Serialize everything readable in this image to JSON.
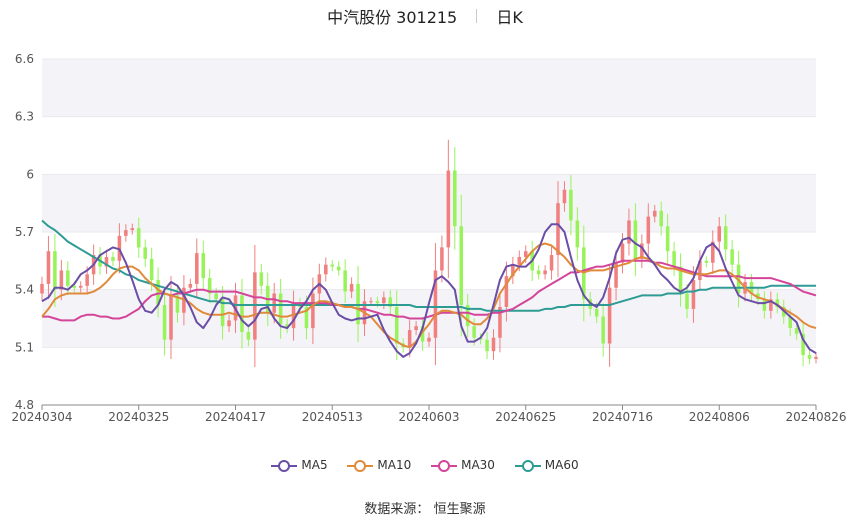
{
  "title": {
    "name": "中汽股份 301215",
    "period": "日K"
  },
  "source": {
    "label": "数据来源：",
    "value": "恒生聚源"
  },
  "colors": {
    "up": "#f08080",
    "down": "#98f35a",
    "MA5": "#6a4ea6",
    "MA10": "#e08a3a",
    "MA30": "#d3449a",
    "MA60": "#2e9b94",
    "grid": "#e8e8ee",
    "band": "#f4f4f8"
  },
  "chart_data": {
    "type": "candlestick",
    "title": "中汽股份 301215",
    "ylim": [
      4.8,
      6.6
    ],
    "yticks": [
      "6.6",
      "6.3",
      "6",
      "5.7",
      "5.4",
      "5.1",
      "4.8"
    ],
    "xticks": [
      {
        "index": 0,
        "label": "20240304"
      },
      {
        "index": 15,
        "label": "20240325"
      },
      {
        "index": 30,
        "label": "20240417"
      },
      {
        "index": 45,
        "label": "20240513"
      },
      {
        "index": 60,
        "label": "20240603"
      },
      {
        "index": 75,
        "label": "20240625"
      },
      {
        "index": 90,
        "label": "20240716"
      },
      {
        "index": 105,
        "label": "20240806"
      },
      {
        "index": 120,
        "label": "20240826"
      }
    ],
    "grid": true,
    "legend_position": "bottom",
    "legend": [
      "MA5",
      "MA10",
      "MA30",
      "MA60"
    ],
    "series": {
      "close": [
        5.43,
        5.6,
        5.4,
        5.5,
        5.42,
        5.41,
        5.42,
        5.48,
        5.58,
        5.52,
        5.57,
        5.55,
        5.68,
        5.71,
        5.72,
        5.62,
        5.56,
        5.45,
        5.32,
        5.14,
        5.37,
        5.28,
        5.41,
        5.43,
        5.59,
        5.46,
        5.38,
        5.35,
        5.21,
        5.24,
        5.37,
        5.18,
        5.14,
        5.49,
        5.42,
        5.28,
        5.38,
        5.22,
        5.2,
        5.33,
        5.31,
        5.2,
        5.38,
        5.48,
        5.53,
        5.52,
        5.5,
        5.39,
        5.43,
        5.22,
        5.34,
        5.34,
        5.33,
        5.36,
        5.31,
        5.12,
        5.1,
        5.19,
        5.21,
        5.13,
        5.15,
        5.5,
        5.62,
        6.02,
        5.73,
        5.32,
        5.21,
        5.15,
        5.14,
        5.08,
        5.15,
        5.31,
        5.47,
        5.53,
        5.57,
        5.6,
        5.5,
        5.48,
        5.5,
        5.58,
        5.85,
        5.92,
        5.76,
        5.62,
        5.35,
        5.3,
        5.26,
        5.12,
        5.41,
        5.54,
        5.64,
        5.76,
        5.56,
        5.64,
        5.78,
        5.81,
        5.73,
        5.6,
        5.52,
        5.38,
        5.3,
        5.45,
        5.55,
        5.54,
        5.65,
        5.73,
        5.61,
        5.53,
        5.38,
        5.44,
        5.38,
        5.35,
        5.29,
        5.35,
        5.31,
        5.26,
        5.2,
        5.17,
        5.06,
        5.04,
        5.05
      ],
      "MA5": [
        5.34,
        5.36,
        5.41,
        5.41,
        5.4,
        5.43,
        5.48,
        5.5,
        5.53,
        5.58,
        5.6,
        5.62,
        5.61,
        5.54,
        5.45,
        5.35,
        5.29,
        5.28,
        5.32,
        5.4,
        5.44,
        5.42,
        5.37,
        5.31,
        5.23,
        5.2,
        5.25,
        5.32,
        5.36,
        5.35,
        5.3,
        5.24,
        5.21,
        5.24,
        5.3,
        5.31,
        5.25,
        5.21,
        5.2,
        5.24,
        5.3,
        5.34,
        5.4,
        5.43,
        5.4,
        5.33,
        5.27,
        5.25,
        5.24,
        5.25,
        5.25,
        5.26,
        5.27,
        5.19,
        5.13,
        5.08,
        5.05,
        5.07,
        5.12,
        5.2,
        5.33,
        5.45,
        5.47,
        5.44,
        5.4,
        5.21,
        5.13,
        5.13,
        5.15,
        5.2,
        5.32,
        5.45,
        5.52,
        5.53,
        5.52,
        5.52,
        5.55,
        5.61,
        5.7,
        5.74,
        5.74,
        5.7,
        5.57,
        5.45,
        5.37,
        5.33,
        5.31,
        5.36,
        5.46,
        5.59,
        5.66,
        5.67,
        5.64,
        5.62,
        5.57,
        5.53,
        5.48,
        5.45,
        5.41,
        5.39,
        5.41,
        5.46,
        5.55,
        5.62,
        5.64,
        5.6,
        5.51,
        5.44,
        5.37,
        5.35,
        5.34,
        5.33,
        5.33,
        5.34,
        5.32,
        5.29,
        5.26,
        5.23,
        5.14,
        5.09,
        5.07
      ],
      "MA10": [
        5.26,
        5.3,
        5.35,
        5.37,
        5.38,
        5.38,
        5.38,
        5.38,
        5.39,
        5.41,
        5.44,
        5.48,
        5.51,
        5.52,
        5.52,
        5.5,
        5.46,
        5.43,
        5.4,
        5.38,
        5.37,
        5.36,
        5.35,
        5.33,
        5.3,
        5.28,
        5.27,
        5.27,
        5.27,
        5.28,
        5.27,
        5.26,
        5.26,
        5.27,
        5.28,
        5.28,
        5.27,
        5.26,
        5.26,
        5.27,
        5.28,
        5.29,
        5.32,
        5.34,
        5.34,
        5.33,
        5.32,
        5.31,
        5.31,
        5.3,
        5.28,
        5.26,
        5.22,
        5.18,
        5.15,
        5.13,
        5.11,
        5.1,
        5.13,
        5.18,
        5.22,
        5.27,
        5.29,
        5.29,
        5.28,
        5.27,
        5.24,
        5.22,
        5.22,
        5.25,
        5.3,
        5.38,
        5.43,
        5.48,
        5.52,
        5.56,
        5.6,
        5.63,
        5.64,
        5.63,
        5.6,
        5.57,
        5.53,
        5.5,
        5.49,
        5.5,
        5.5,
        5.5,
        5.51,
        5.52,
        5.53,
        5.54,
        5.56,
        5.57,
        5.56,
        5.54,
        5.52,
        5.51,
        5.51,
        5.5,
        5.49,
        5.48,
        5.48,
        5.48,
        5.49,
        5.5,
        5.5,
        5.48,
        5.45,
        5.41,
        5.38,
        5.36,
        5.35,
        5.34,
        5.32,
        5.3,
        5.28,
        5.26,
        5.23,
        5.21,
        5.2
      ],
      "MA30": [
        5.26,
        5.26,
        5.25,
        5.24,
        5.24,
        5.24,
        5.26,
        5.27,
        5.27,
        5.26,
        5.26,
        5.25,
        5.25,
        5.26,
        5.28,
        5.3,
        5.34,
        5.37,
        5.38,
        5.38,
        5.37,
        5.38,
        5.38,
        5.39,
        5.4,
        5.4,
        5.39,
        5.39,
        5.39,
        5.39,
        5.39,
        5.38,
        5.37,
        5.36,
        5.36,
        5.35,
        5.35,
        5.34,
        5.34,
        5.33,
        5.33,
        5.33,
        5.33,
        5.33,
        5.33,
        5.32,
        5.32,
        5.31,
        5.31,
        5.3,
        5.3,
        5.29,
        5.28,
        5.27,
        5.27,
        5.26,
        5.26,
        5.25,
        5.25,
        5.25,
        5.26,
        5.27,
        5.28,
        5.28,
        5.28,
        5.28,
        5.28,
        5.27,
        5.27,
        5.27,
        5.28,
        5.28,
        5.29,
        5.3,
        5.32,
        5.34,
        5.36,
        5.39,
        5.41,
        5.43,
        5.45,
        5.47,
        5.49,
        5.49,
        5.5,
        5.51,
        5.52,
        5.52,
        5.53,
        5.54,
        5.55,
        5.55,
        5.55,
        5.55,
        5.55,
        5.54,
        5.54,
        5.53,
        5.52,
        5.51,
        5.5,
        5.49,
        5.48,
        5.47,
        5.47,
        5.47,
        5.47,
        5.47,
        5.47,
        5.46,
        5.46,
        5.46,
        5.46,
        5.46,
        5.45,
        5.44,
        5.43,
        5.41,
        5.39,
        5.38,
        5.37
      ],
      "MA60": [
        5.76,
        5.73,
        5.71,
        5.68,
        5.65,
        5.63,
        5.61,
        5.59,
        5.57,
        5.55,
        5.53,
        5.51,
        5.5,
        5.48,
        5.47,
        5.45,
        5.44,
        5.43,
        5.42,
        5.41,
        5.4,
        5.39,
        5.38,
        5.37,
        5.36,
        5.35,
        5.34,
        5.34,
        5.33,
        5.33,
        5.32,
        5.32,
        5.32,
        5.32,
        5.32,
        5.32,
        5.32,
        5.32,
        5.32,
        5.32,
        5.32,
        5.32,
        5.32,
        5.32,
        5.32,
        5.32,
        5.32,
        5.32,
        5.32,
        5.32,
        5.32,
        5.32,
        5.32,
        5.32,
        5.32,
        5.32,
        5.32,
        5.32,
        5.31,
        5.31,
        5.31,
        5.31,
        5.31,
        5.31,
        5.31,
        5.31,
        5.3,
        5.3,
        5.3,
        5.29,
        5.29,
        5.29,
        5.29,
        5.29,
        5.29,
        5.29,
        5.29,
        5.29,
        5.3,
        5.3,
        5.31,
        5.31,
        5.32,
        5.32,
        5.32,
        5.32,
        5.32,
        5.32,
        5.32,
        5.33,
        5.34,
        5.35,
        5.36,
        5.37,
        5.37,
        5.37,
        5.37,
        5.38,
        5.38,
        5.38,
        5.39,
        5.39,
        5.4,
        5.4,
        5.41,
        5.41,
        5.41,
        5.41,
        5.41,
        5.41,
        5.41,
        5.41,
        5.41,
        5.42,
        5.42,
        5.42,
        5.42,
        5.42,
        5.42,
        5.42,
        5.42
      ]
    }
  }
}
